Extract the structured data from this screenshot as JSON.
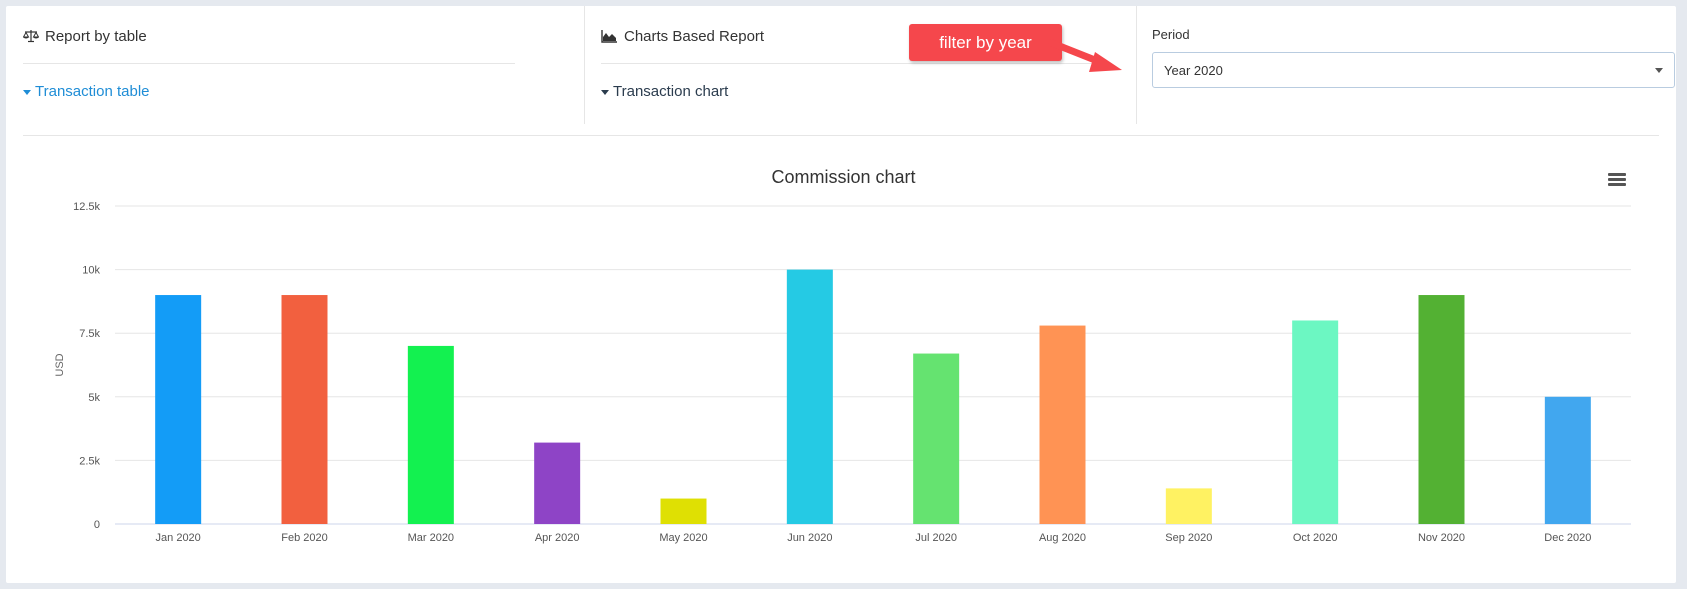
{
  "report_table": {
    "header": "Report by table",
    "link": "Transaction table",
    "icon": "balance-scale-icon"
  },
  "charts_report": {
    "header": "Charts Based Report",
    "link": "Transaction chart",
    "icon": "area-chart-icon"
  },
  "period": {
    "label": "Period",
    "selected": "Year 2020"
  },
  "annotation": {
    "text": "filter by year",
    "color": "#f5474c"
  },
  "chart_menu_icon": "hamburger-menu-icon",
  "chart_data": {
    "type": "bar",
    "title": "Commission chart",
    "ylabel": "USD",
    "xlabel": "",
    "ylim": [
      0,
      12500
    ],
    "yticks": [
      {
        "value": 0,
        "label": "0"
      },
      {
        "value": 2500,
        "label": "2.5k"
      },
      {
        "value": 5000,
        "label": "5k"
      },
      {
        "value": 7500,
        "label": "7.5k"
      },
      {
        "value": 10000,
        "label": "10k"
      },
      {
        "value": 12500,
        "label": "12.5k"
      }
    ],
    "categories": [
      "Jan 2020",
      "Feb 2020",
      "Mar 2020",
      "Apr 2020",
      "May 2020",
      "Jun 2020",
      "Jul 2020",
      "Aug 2020",
      "Sep 2020",
      "Oct 2020",
      "Nov 2020",
      "Dec 2020"
    ],
    "values": [
      9000,
      9000,
      7000,
      3200,
      1000,
      10000,
      6700,
      7800,
      1400,
      8000,
      9000,
      5000
    ],
    "colors": [
      "#139cf7",
      "#f2603f",
      "#13f150",
      "#8e44c6",
      "#dfe003",
      "#25cae4",
      "#65e370",
      "#ff9354",
      "#fff262",
      "#6cf7c2",
      "#53b133",
      "#41a7ef"
    ],
    "grid": true
  }
}
